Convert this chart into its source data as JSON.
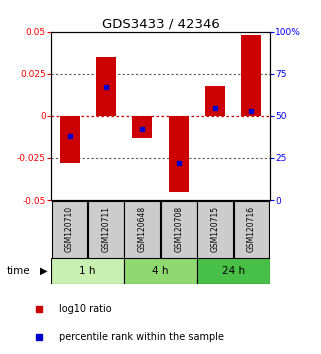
{
  "title": "GDS3433 / 42346",
  "samples": [
    "GSM120710",
    "GSM120711",
    "GSM120648",
    "GSM120708",
    "GSM120715",
    "GSM120716"
  ],
  "log10_ratio": [
    -0.028,
    0.035,
    -0.013,
    -0.045,
    0.018,
    0.048
  ],
  "percentile_rank": [
    38,
    67,
    42,
    22,
    55,
    53
  ],
  "time_groups": [
    {
      "label": "1 h",
      "indices": [
        0,
        1
      ],
      "color": "#c8f0b0"
    },
    {
      "label": "4 h",
      "indices": [
        2,
        3
      ],
      "color": "#90d870"
    },
    {
      "label": "24 h",
      "indices": [
        4,
        5
      ],
      "color": "#48c048"
    }
  ],
  "ylim": [
    -0.05,
    0.05
  ],
  "yticks_left": [
    -0.05,
    -0.025,
    0,
    0.025,
    0.05
  ],
  "yticks_right": [
    0,
    25,
    50,
    75,
    100
  ],
  "bar_color": "#cc0000",
  "dot_color": "#0000cc",
  "background_color": "#ffffff",
  "plot_bg_color": "#ffffff",
  "label_bg_color": "#cccccc",
  "hline_zero_color": "#cc0000",
  "hline_dotted_color": "#555555",
  "bar_width": 0.55,
  "legend_log10": "log10 ratio",
  "legend_pct": "percentile rank within the sample"
}
